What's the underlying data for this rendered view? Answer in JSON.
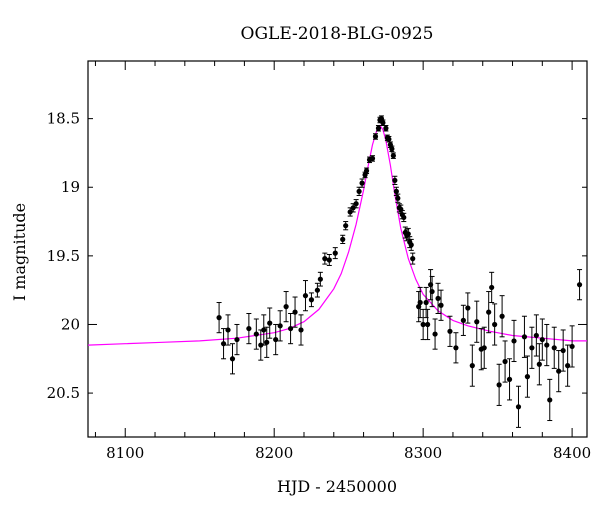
{
  "chart_data": {
    "type": "scatter",
    "title": "OGLE-2018-BLG-0925",
    "xlabel": "HJD - 2450000",
    "ylabel": "I magnitude",
    "xlim": [
      8075,
      8410
    ],
    "ylim": [
      20.82,
      18.08
    ],
    "y_inverted": true,
    "grid": false,
    "x_ticks": [
      8100,
      8200,
      8300,
      8400
    ],
    "x_tick_labels": [
      "8100",
      "8200",
      "8300",
      "8400"
    ],
    "y_ticks": [
      18.5,
      19,
      19.5,
      20,
      20.5
    ],
    "y_tick_labels": [
      "18.5",
      "19",
      "19.5",
      "20",
      "20.5"
    ],
    "colors": {
      "data": "#000000",
      "model": "#ff00ff"
    },
    "series": [
      {
        "kind": "points_with_errorbars",
        "x": [
          8163,
          8166,
          8169,
          8172,
          8175,
          8183,
          8188,
          8191,
          8193,
          8195,
          8197,
          8201,
          8204,
          8208,
          8211,
          8214,
          8218,
          8221,
          8225,
          8229,
          8231,
          8234,
          8237,
          8241,
          8246,
          8248,
          8251,
          8253,
          8255,
          8257,
          8259,
          8261,
          8262,
          8264,
          8266,
          8268,
          8270,
          8271,
          8272,
          8273,
          8275,
          8276,
          8277,
          8278,
          8279,
          8280,
          8281,
          8282,
          8283,
          8284,
          8285,
          8286,
          8287,
          8288,
          8289,
          8290,
          8291,
          8292,
          8293,
          8297,
          8298,
          8300,
          8302,
          8303,
          8305,
          8306,
          8308,
          8310,
          8312,
          8318,
          8322,
          8327,
          8330,
          8333,
          8336,
          8339,
          8341,
          8344,
          8346,
          8348,
          8351,
          8353,
          8355,
          8358,
          8361,
          8364,
          8368,
          8370,
          8373,
          8376,
          8378,
          8380,
          8383,
          8385,
          8388,
          8391,
          8394,
          8397,
          8400,
          8405
        ],
        "y": [
          19.95,
          20.14,
          20.04,
          20.25,
          20.11,
          20.03,
          20.07,
          20.15,
          20.04,
          20.13,
          19.99,
          20.11,
          20.01,
          19.87,
          20.03,
          19.91,
          20.04,
          19.79,
          19.82,
          19.75,
          19.67,
          19.52,
          19.53,
          19.48,
          19.38,
          19.28,
          19.18,
          19.15,
          19.12,
          19.03,
          18.97,
          18.91,
          18.88,
          18.8,
          18.79,
          18.63,
          18.57,
          18.51,
          18.5,
          18.53,
          18.57,
          18.64,
          18.65,
          18.69,
          18.72,
          18.77,
          18.95,
          19.03,
          19.08,
          19.15,
          19.16,
          19.2,
          19.22,
          19.33,
          19.35,
          19.34,
          19.4,
          19.42,
          19.52,
          19.87,
          19.84,
          20.0,
          19.84,
          20.0,
          19.71,
          19.76,
          20.07,
          19.81,
          19.86,
          20.05,
          20.17,
          19.97,
          19.88,
          20.3,
          19.98,
          20.18,
          20.17,
          19.91,
          19.73,
          20.0,
          20.44,
          19.94,
          20.27,
          20.4,
          20.12,
          20.6,
          20.09,
          20.38,
          20.17,
          20.08,
          20.29,
          20.11,
          20.15,
          20.55,
          20.17,
          20.34,
          20.19,
          20.3,
          20.16,
          19.71
        ],
        "yerr": [
          0.11,
          0.11,
          0.11,
          0.11,
          0.11,
          0.11,
          0.11,
          0.11,
          0.11,
          0.11,
          0.11,
          0.11,
          0.11,
          0.11,
          0.11,
          0.11,
          0.11,
          0.11,
          0.05,
          0.05,
          0.05,
          0.04,
          0.04,
          0.04,
          0.03,
          0.03,
          0.03,
          0.03,
          0.03,
          0.03,
          0.03,
          0.02,
          0.02,
          0.02,
          0.02,
          0.02,
          0.02,
          0.02,
          0.02,
          0.02,
          0.02,
          0.02,
          0.02,
          0.02,
          0.02,
          0.02,
          0.03,
          0.03,
          0.03,
          0.03,
          0.03,
          0.03,
          0.03,
          0.04,
          0.04,
          0.04,
          0.04,
          0.04,
          0.04,
          0.11,
          0.11,
          0.11,
          0.11,
          0.11,
          0.11,
          0.11,
          0.11,
          0.11,
          0.11,
          0.11,
          0.11,
          0.11,
          0.11,
          0.15,
          0.15,
          0.15,
          0.15,
          0.15,
          0.11,
          0.15,
          0.15,
          0.15,
          0.15,
          0.15,
          0.15,
          0.15,
          0.15,
          0.15,
          0.15,
          0.15,
          0.15,
          0.15,
          0.15,
          0.15,
          0.15,
          0.15,
          0.15,
          0.15,
          0.15,
          0.11
        ]
      },
      {
        "kind": "model_curve",
        "x": [
          8075,
          8100,
          8125,
          8150,
          8175,
          8200,
          8210,
          8220,
          8230,
          8240,
          8245,
          8250,
          8255,
          8260,
          8263,
          8266,
          8269,
          8271,
          8273,
          8275,
          8278,
          8281,
          8285,
          8290,
          8295,
          8300,
          8310,
          8320,
          8330,
          8345,
          8360,
          8380,
          8400,
          8410
        ],
        "y": [
          20.15,
          20.14,
          20.13,
          20.12,
          20.1,
          20.06,
          20.03,
          19.98,
          19.89,
          19.74,
          19.63,
          19.47,
          19.27,
          19.02,
          18.85,
          18.69,
          18.58,
          18.55,
          18.58,
          18.66,
          18.84,
          19.05,
          19.3,
          19.52,
          19.67,
          19.78,
          19.9,
          19.97,
          20.01,
          20.05,
          20.08,
          20.1,
          20.12,
          20.12
        ]
      }
    ]
  }
}
